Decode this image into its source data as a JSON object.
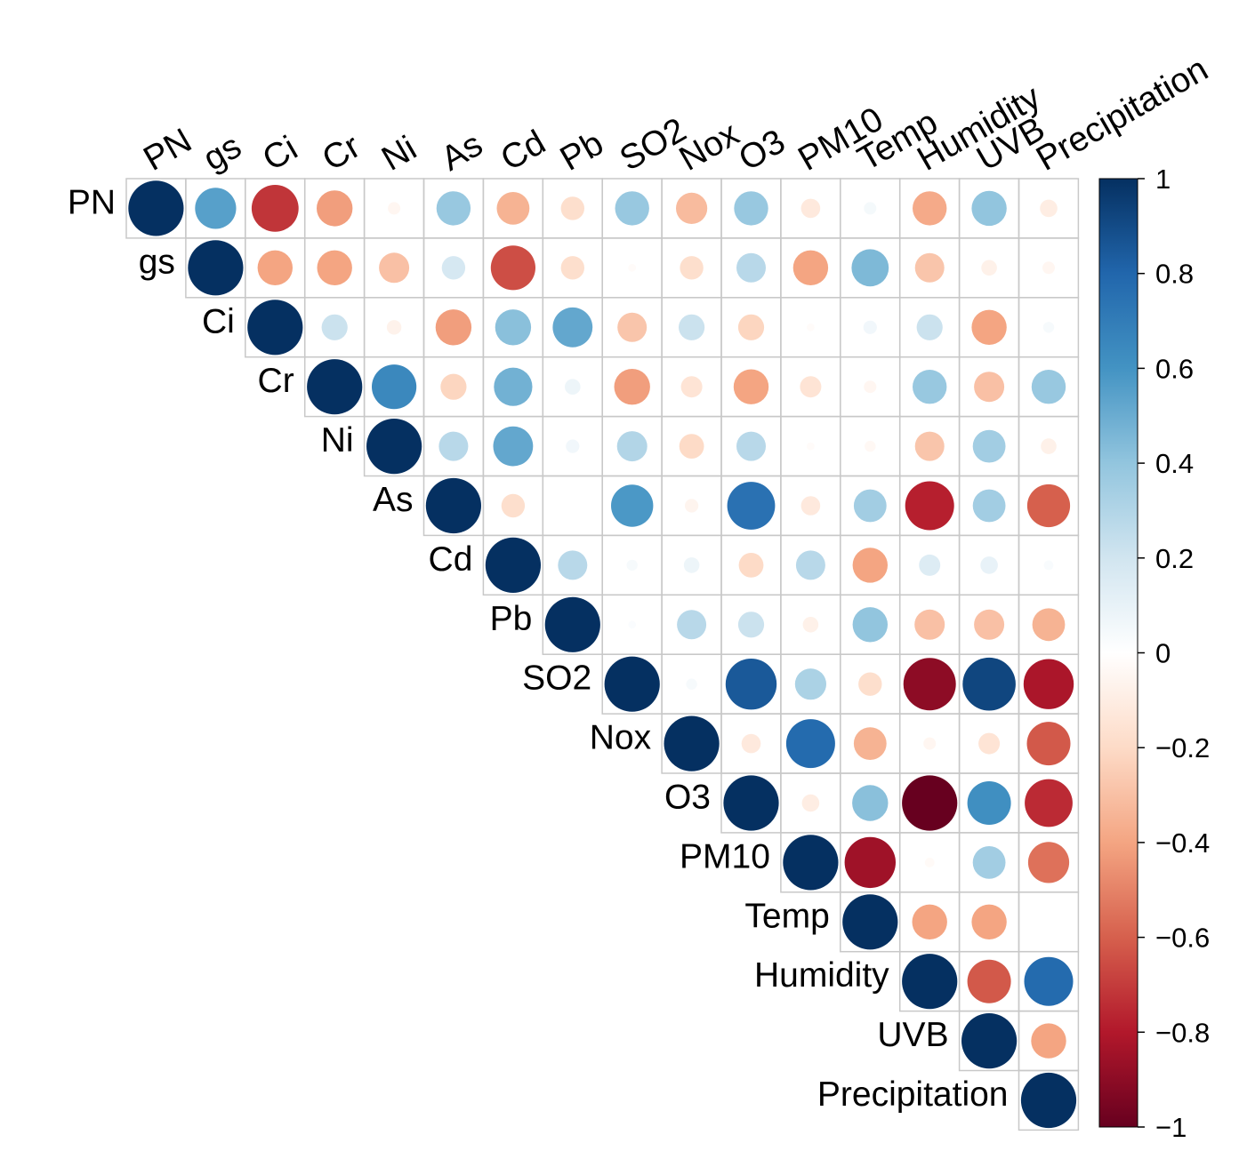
{
  "chart_data": {
    "type": "heatmap",
    "subtype": "correlation-upper-triangle-circles",
    "title": "",
    "variables": [
      "PN",
      "gs",
      "Ci",
      "Cr",
      "Ni",
      "As",
      "Cd",
      "Pb",
      "SO2",
      "Nox",
      "O3",
      "PM10",
      "Temp",
      "Humidity",
      "UVB",
      "Precipitation"
    ],
    "matrix": [
      [
        1,
        0.55,
        -0.72,
        -0.42,
        -0.05,
        0.38,
        -0.35,
        -0.18,
        0.38,
        -0.32,
        0.38,
        -0.12,
        0.05,
        -0.38,
        0.4,
        -0.1
      ],
      [
        0.55,
        1,
        -0.4,
        -0.4,
        -0.3,
        0.18,
        -0.65,
        -0.18,
        -0.02,
        -0.18,
        0.28,
        -0.4,
        0.45,
        -0.28,
        -0.08,
        -0.05
      ],
      [
        -0.72,
        -0.4,
        1,
        0.22,
        -0.07,
        -0.42,
        0.42,
        0.52,
        -0.28,
        0.22,
        -0.22,
        -0.02,
        0.06,
        0.22,
        -0.4,
        0.04
      ],
      [
        -0.42,
        -0.4,
        0.22,
        1,
        0.65,
        -0.22,
        0.48,
        0.08,
        -0.42,
        -0.15,
        -0.4,
        -0.15,
        -0.05,
        0.38,
        -0.3,
        0.38
      ],
      [
        -0.05,
        -0.3,
        -0.07,
        0.65,
        1,
        0.28,
        0.52,
        0.06,
        0.3,
        -0.2,
        0.28,
        -0.02,
        -0.04,
        -0.28,
        0.35,
        -0.08
      ],
      [
        0.38,
        0.18,
        -0.42,
        -0.22,
        0.28,
        1,
        -0.18,
        0,
        0.58,
        -0.06,
        0.75,
        -0.12,
        0.35,
        -0.78,
        0.35,
        -0.6
      ],
      [
        -0.35,
        -0.65,
        0.42,
        0.48,
        0.52,
        -0.18,
        1,
        0.28,
        0.04,
        0.08,
        -0.2,
        0.28,
        -0.4,
        0.15,
        0.1,
        0.03
      ],
      [
        -0.18,
        -0.18,
        0.52,
        0.08,
        0.06,
        0,
        0.28,
        1,
        0.02,
        0.28,
        0.22,
        -0.08,
        0.4,
        -0.3,
        -0.3,
        -0.35
      ],
      [
        0.38,
        -0.02,
        -0.28,
        -0.42,
        0.3,
        0.58,
        0.04,
        0.02,
        1,
        0.04,
        0.85,
        0.32,
        -0.18,
        -0.9,
        0.92,
        -0.82
      ],
      [
        -0.32,
        -0.18,
        0.22,
        -0.15,
        -0.2,
        -0.06,
        0.08,
        0.28,
        0.04,
        1,
        -0.12,
        0.78,
        -0.35,
        -0.05,
        -0.15,
        -0.62
      ],
      [
        0.38,
        0.28,
        -0.22,
        -0.4,
        0.28,
        0.75,
        -0.2,
        0.22,
        0.85,
        -0.12,
        1,
        -0.1,
        0.42,
        -1.0,
        0.62,
        -0.75
      ],
      [
        -0.12,
        -0.4,
        -0.02,
        -0.15,
        -0.02,
        -0.12,
        0.28,
        -0.08,
        0.32,
        0.78,
        -0.1,
        1,
        -0.85,
        -0.03,
        0.35,
        -0.55
      ],
      [
        0.05,
        0.45,
        0.06,
        -0.05,
        -0.04,
        0.35,
        -0.4,
        0.4,
        -0.18,
        -0.35,
        0.42,
        -0.85,
        1,
        -0.4,
        -0.4,
        0
      ],
      [
        -0.38,
        -0.28,
        0.22,
        0.38,
        -0.28,
        -0.78,
        0.15,
        -0.3,
        -0.9,
        -0.05,
        -1.0,
        -0.03,
        -0.4,
        1,
        -0.62,
        0.78
      ],
      [
        0.4,
        -0.08,
        -0.4,
        -0.3,
        0.35,
        0.35,
        0.1,
        -0.3,
        0.92,
        -0.15,
        0.62,
        0.35,
        -0.4,
        -0.62,
        1,
        -0.4
      ],
      [
        -0.1,
        -0.05,
        0.04,
        0.38,
        -0.08,
        -0.6,
        0.03,
        -0.35,
        -0.82,
        -0.62,
        -0.75,
        -0.55,
        0,
        0.78,
        -0.4,
        1
      ]
    ],
    "colorbar": {
      "min": -1,
      "max": 1,
      "ticks": [
        "1",
        "0.8",
        "0.6",
        "0.4",
        "0.2",
        "0",
        "−0.2",
        "−0.4",
        "−0.6",
        "−0.8",
        "−1"
      ],
      "tick_values": [
        1,
        0.8,
        0.6,
        0.4,
        0.2,
        0,
        -0.2,
        -0.4,
        -0.6,
        -0.8,
        -1
      ],
      "placement": "right"
    },
    "palette": {
      "negative_end": "#67001f",
      "neutral": "#ffffff",
      "positive_end": "#053061",
      "grid": "#c8c8c8"
    }
  }
}
